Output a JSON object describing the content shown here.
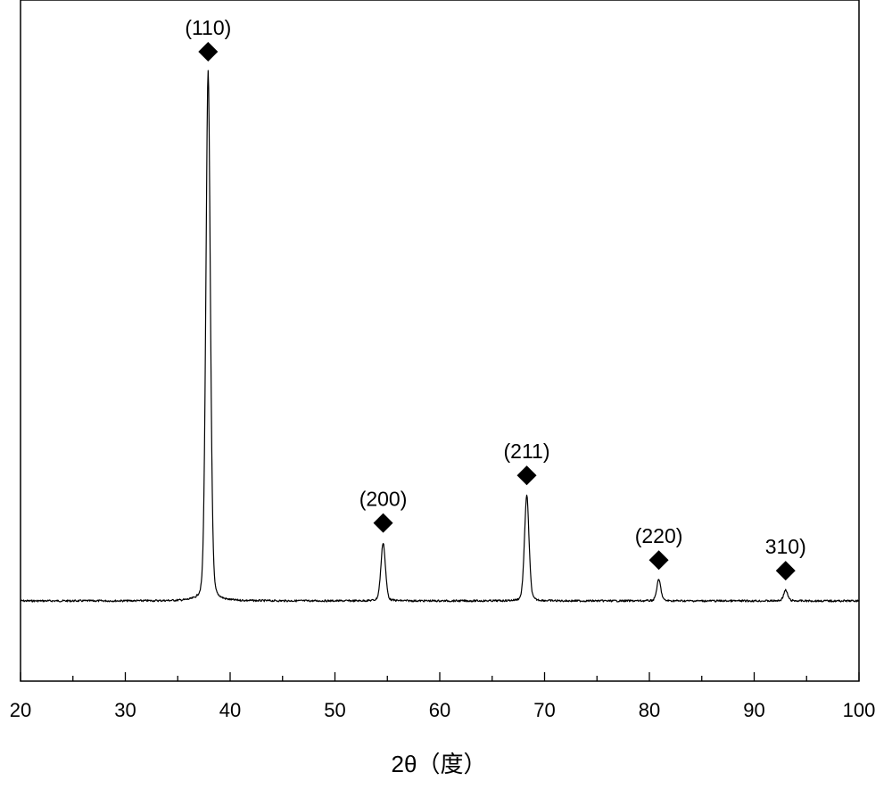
{
  "chart_data": {
    "type": "line",
    "title": "",
    "xlabel": "2θ（度）",
    "ylabel": "",
    "xlim": [
      20,
      100
    ],
    "xticks": [
      "20",
      "30",
      "40",
      "50",
      "60",
      "70",
      "80",
      "90",
      "100"
    ],
    "y_axis_ticks_shown": false,
    "grid": false,
    "legend": "none",
    "line_color": "#000000",
    "marker_color": "#000000",
    "baseline_intensity": 0.15,
    "series": [
      {
        "peaks": [
          {
            "two_theta": 37.9,
            "relative_intensity": 100,
            "label": "(110)"
          },
          {
            "two_theta": 54.6,
            "relative_intensity": 11,
            "label": "(200)"
          },
          {
            "two_theta": 68.3,
            "relative_intensity": 20,
            "label": "(211)"
          },
          {
            "two_theta": 80.9,
            "relative_intensity": 4,
            "label": "(220)"
          },
          {
            "two_theta": 93.0,
            "relative_intensity": 2,
            "label": "310)"
          }
        ]
      }
    ]
  }
}
